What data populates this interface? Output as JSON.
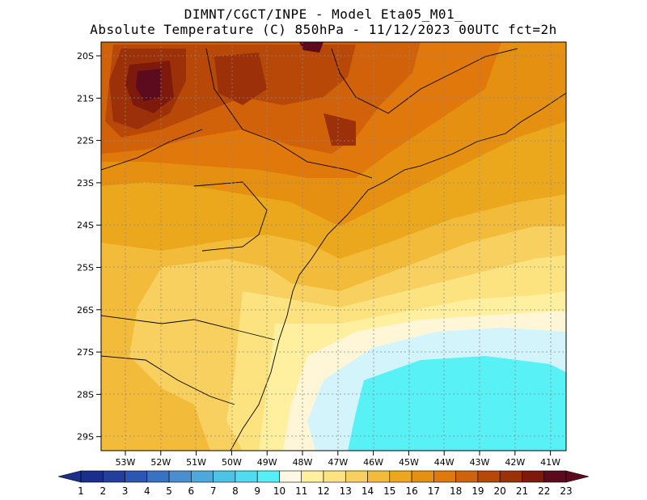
{
  "title_line1": "DIMNT/CGCT/INPE  -   Model Eta05_M01_",
  "title_line2": "Absolute Temperature (C) 850hPa  -   11/12/2023 00UTC fct=2h",
  "lat_ticks": [
    "20S",
    "21S",
    "22S",
    "23S",
    "24S",
    "25S",
    "26S",
    "27S",
    "28S",
    "29S"
  ],
  "lon_ticks": [
    "53W",
    "52W",
    "51W",
    "50W",
    "49W",
    "48W",
    "47W",
    "46W",
    "45W",
    "44W",
    "43W",
    "42W",
    "41W"
  ],
  "colorbar": {
    "labels": [
      "1",
      "2",
      "3",
      "4",
      "5",
      "6",
      "7",
      "8",
      "9",
      "10",
      "11",
      "12",
      "13",
      "14",
      "15",
      "16",
      "17",
      "18",
      "19",
      "20",
      "21",
      "22",
      "23"
    ],
    "colors": [
      "#1a2f8c",
      "#233f9e",
      "#2c56b3",
      "#3a72c2",
      "#4b8ed0",
      "#4fa8dc",
      "#4dc4e6",
      "#4fdcef",
      "#55f0f5",
      "#c8f2fb",
      "#fdf8e4",
      "#fff0a0",
      "#fde380",
      "#f8d060",
      "#f2bc3a",
      "#eca81c",
      "#e69012",
      "#e0780c",
      "#d2620a",
      "#b84808",
      "#9c3008",
      "#7d1a0c",
      "#5c0a1e"
    ]
  },
  "contour_colors": {
    "pale": "#fff6d8",
    "light_cyan": "#d4f4fb",
    "cyan": "#58f2f6"
  }
}
